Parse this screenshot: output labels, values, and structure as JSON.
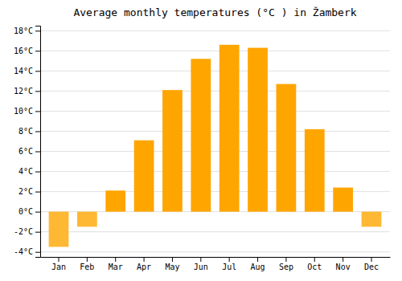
{
  "chart_data": {
    "type": "bar",
    "title": "Average monthly temperatures (°C ) in Žamberk",
    "categories": [
      "Jan",
      "Feb",
      "Mar",
      "Apr",
      "May",
      "Jun",
      "Jul",
      "Aug",
      "Sep",
      "Oct",
      "Nov",
      "Dec"
    ],
    "values": [
      -3.5,
      -1.5,
      2.1,
      7.1,
      12.1,
      15.2,
      16.6,
      16.3,
      12.7,
      8.2,
      2.4,
      -1.5
    ],
    "colors": [
      "#FFB833",
      "#FFB833",
      "#FFA500",
      "#FFA500",
      "#FFA500",
      "#FFA500",
      "#FFA500",
      "#FFA500",
      "#FFA500",
      "#FFA500",
      "#FFA500",
      "#FFB833"
    ],
    "ylim": [
      -4.5,
      18.5
    ],
    "yticks": [
      {
        "value": -4,
        "label": "-4°C"
      },
      {
        "value": -2,
        "label": "-2°C"
      },
      {
        "value": 0,
        "label": "0°C"
      },
      {
        "value": 2,
        "label": "2°C"
      },
      {
        "value": 4,
        "label": "4°C"
      },
      {
        "value": 6,
        "label": "6°C"
      },
      {
        "value": 8,
        "label": "8°C"
      },
      {
        "value": 10,
        "label": "10°C"
      },
      {
        "value": 12,
        "label": "12°C"
      },
      {
        "value": 14,
        "label": "14°C"
      },
      {
        "value": 16,
        "label": "16°C"
      },
      {
        "value": 18,
        "label": "18°C"
      }
    ],
    "grid": true
  }
}
